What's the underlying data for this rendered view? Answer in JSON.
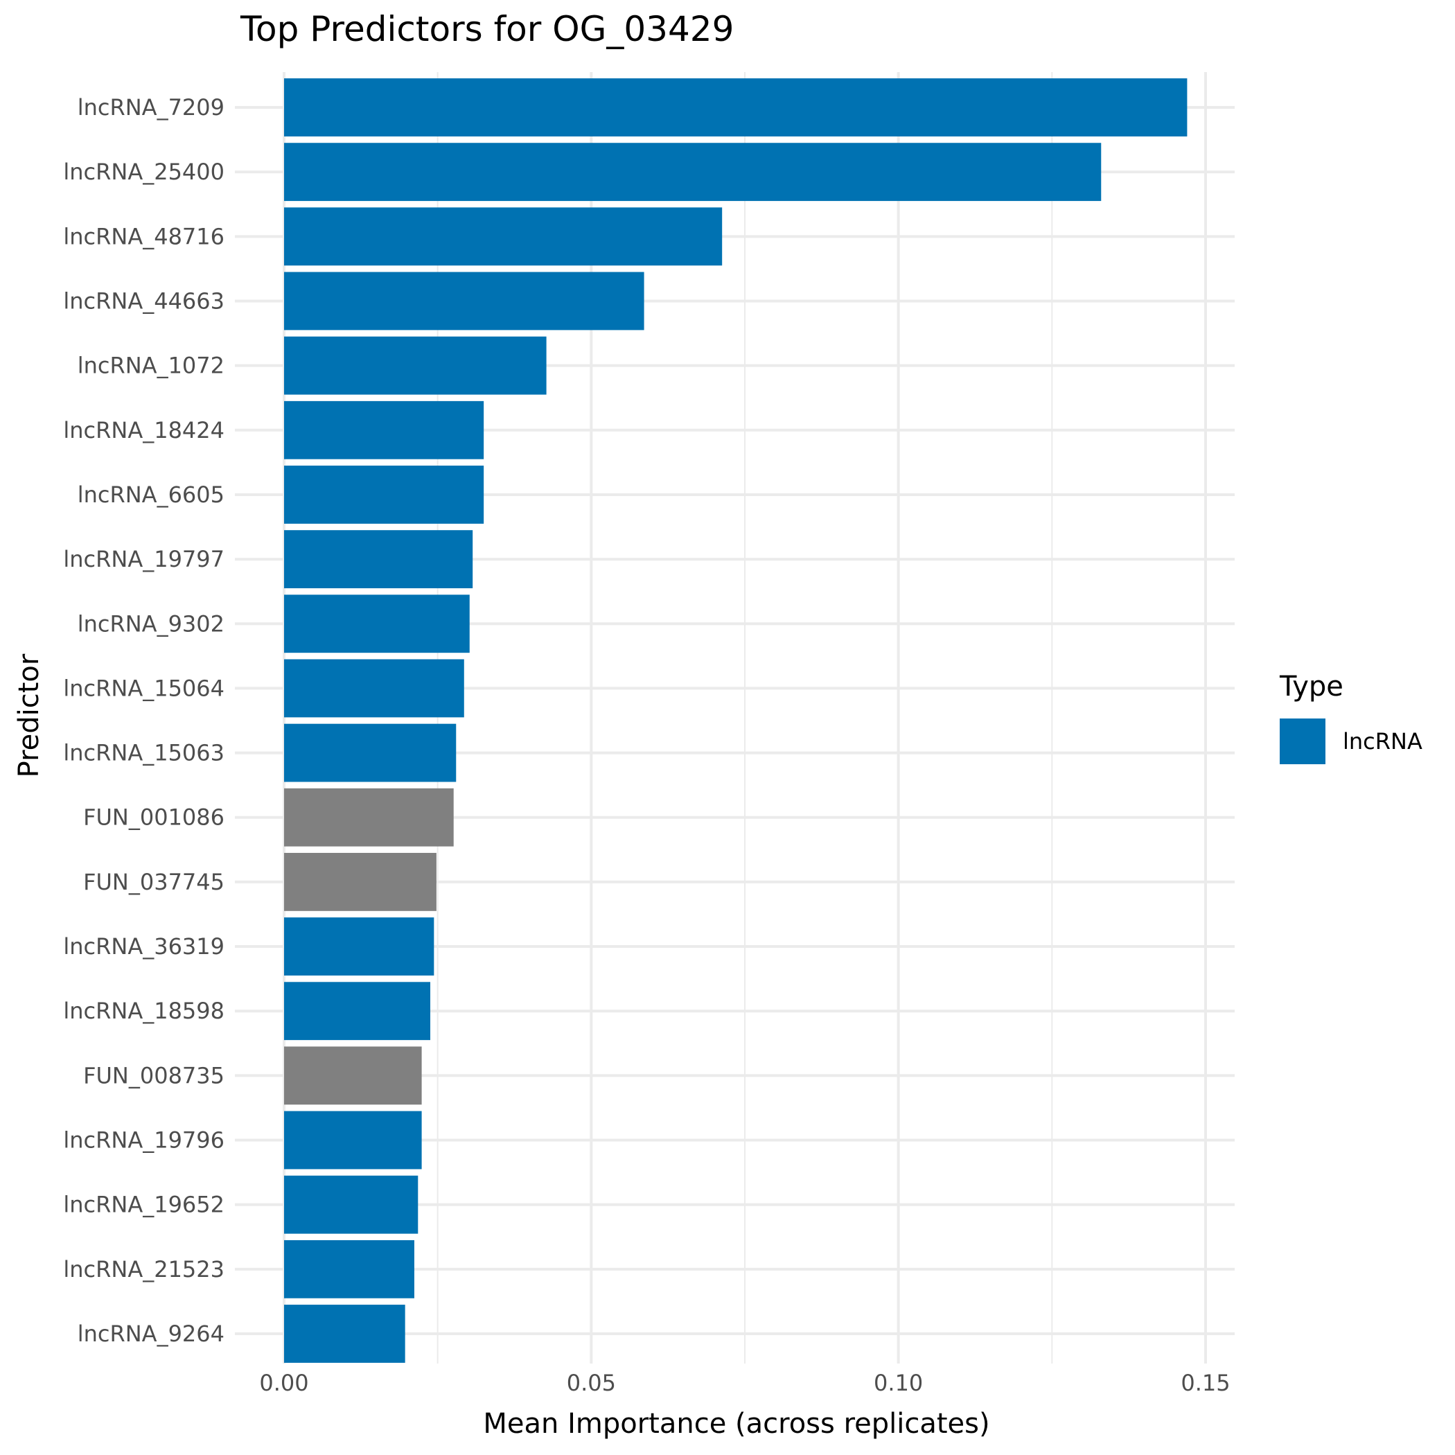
{
  "chart_data": {
    "type": "bar",
    "orientation": "horizontal",
    "title": "Top Predictors for OG_03429",
    "xlabel": "Mean Importance (across replicates)",
    "ylabel": "Predictor",
    "xlim": [
      0,
      0.155
    ],
    "xticks": [
      {
        "value": 0.0,
        "label": "0.00"
      },
      {
        "value": 0.05,
        "label": "0.05"
      },
      {
        "value": 0.1,
        "label": "0.10"
      },
      {
        "value": 0.15,
        "label": "0.15"
      }
    ],
    "grid": true,
    "legend": {
      "title": "Type",
      "position": "right",
      "entries": [
        {
          "label": "lncRNA",
          "color": "#0072B2"
        }
      ]
    },
    "colors": {
      "lncRNA": "#0072B2",
      "other": "#808080"
    },
    "bars": [
      {
        "category": "lncRNA_7209",
        "value": 0.147,
        "type": "lncRNA"
      },
      {
        "category": "lncRNA_25400",
        "value": 0.133,
        "type": "lncRNA"
      },
      {
        "category": "lncRNA_48716",
        "value": 0.0713,
        "type": "lncRNA"
      },
      {
        "category": "lncRNA_44663",
        "value": 0.0586,
        "type": "lncRNA"
      },
      {
        "category": "lncRNA_1072",
        "value": 0.0427,
        "type": "lncRNA"
      },
      {
        "category": "lncRNA_18424",
        "value": 0.0325,
        "type": "lncRNA"
      },
      {
        "category": "lncRNA_6605",
        "value": 0.0325,
        "type": "lncRNA"
      },
      {
        "category": "lncRNA_19797",
        "value": 0.0307,
        "type": "lncRNA"
      },
      {
        "category": "lncRNA_9302",
        "value": 0.0302,
        "type": "lncRNA"
      },
      {
        "category": "lncRNA_15064",
        "value": 0.0293,
        "type": "lncRNA"
      },
      {
        "category": "lncRNA_15063",
        "value": 0.028,
        "type": "lncRNA"
      },
      {
        "category": "FUN_001086",
        "value": 0.0276,
        "type": "other"
      },
      {
        "category": "FUN_037745",
        "value": 0.0248,
        "type": "other"
      },
      {
        "category": "lncRNA_36319",
        "value": 0.0244,
        "type": "lncRNA"
      },
      {
        "category": "lncRNA_18598",
        "value": 0.0238,
        "type": "lncRNA"
      },
      {
        "category": "FUN_008735",
        "value": 0.0224,
        "type": "other"
      },
      {
        "category": "lncRNA_19796",
        "value": 0.0224,
        "type": "lncRNA"
      },
      {
        "category": "lncRNA_19652",
        "value": 0.0218,
        "type": "lncRNA"
      },
      {
        "category": "lncRNA_21523",
        "value": 0.0212,
        "type": "lncRNA"
      },
      {
        "category": "lncRNA_9264",
        "value": 0.0197,
        "type": "lncRNA"
      }
    ]
  }
}
